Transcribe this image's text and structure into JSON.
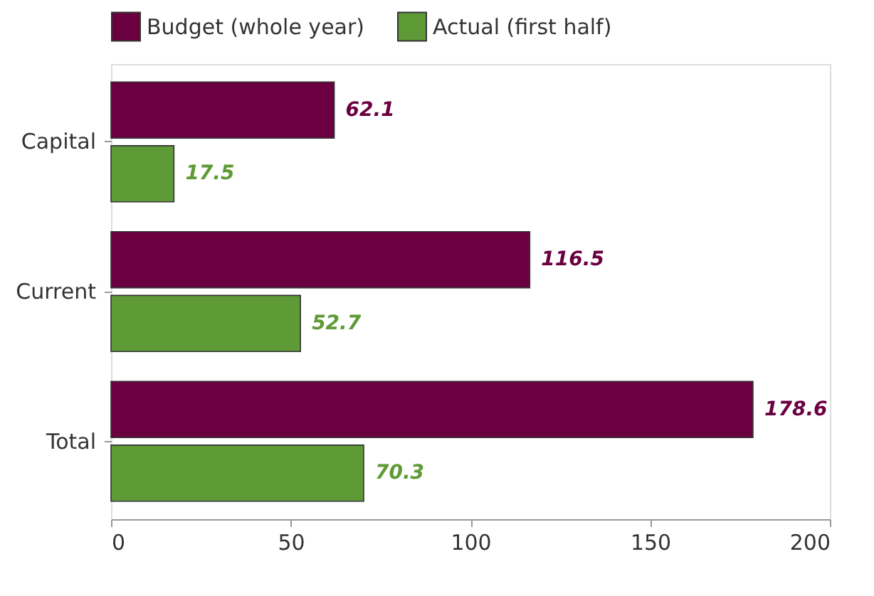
{
  "chart_data": {
    "type": "bar",
    "orientation": "horizontal",
    "categories": [
      "Capital",
      "Current",
      "Total"
    ],
    "series": [
      {
        "name": "Budget (whole year)",
        "color": "#6b0040",
        "values": [
          62.1,
          116.5,
          178.6
        ]
      },
      {
        "name": "Actual (first half)",
        "color": "#5e9a36",
        "values": [
          17.5,
          52.7,
          70.3
        ]
      }
    ],
    "xlim": [
      0,
      200
    ],
    "xticks": [
      0,
      50,
      100,
      150,
      200
    ],
    "data_labels": true,
    "legend": "top left"
  }
}
